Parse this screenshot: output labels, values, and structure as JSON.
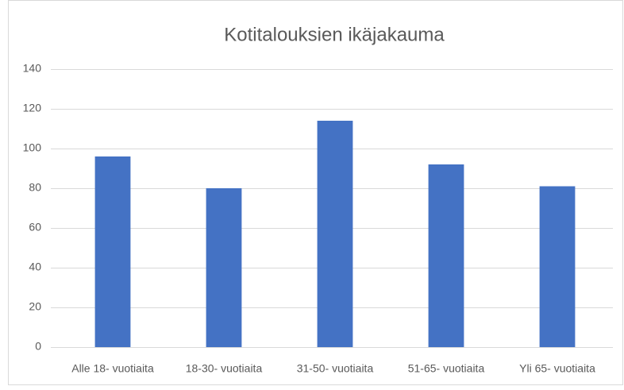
{
  "chart_data": {
    "type": "bar",
    "title": "Kotitalouksien ikäjakauma",
    "categories": [
      "Alle 18- vuotiaita",
      "18-30- vuotiaita",
      "31-50- vuotiaita",
      "51-65- vuotiaita",
      "Yli 65- vuotiaita"
    ],
    "values": [
      96,
      80,
      114,
      92,
      81
    ],
    "color": "#4472c4",
    "ylim": [
      0,
      140
    ],
    "yticks": [
      0,
      20,
      40,
      60,
      80,
      100,
      120,
      140
    ],
    "grid": true
  }
}
